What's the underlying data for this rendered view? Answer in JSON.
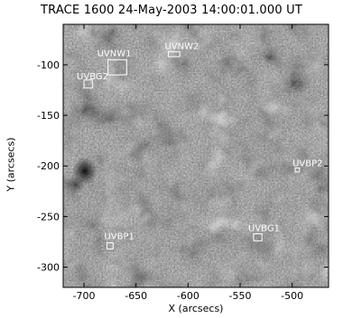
{
  "figure": {
    "title": "TRACE 1600 24-May-2003 14:00:01.000 UT",
    "xlabel": "X (arcsecs)",
    "ylabel": "Y (arcsecs)"
  },
  "image": {
    "description_type": "solar UV image (grayscale, granular texture)",
    "colors": {
      "background": "#4a4a4a",
      "bright": "#e8e8e8",
      "dark": "#1a1a1a",
      "box": "#ffffff"
    }
  },
  "axes": {
    "xlim": [
      -720,
      -465
    ],
    "ylim": [
      -320,
      -60
    ],
    "xticks": [
      -700,
      -650,
      -600,
      -550,
      -500
    ],
    "yticks": [
      -100,
      -150,
      -200,
      -250,
      -300
    ],
    "xtick_labels": [
      "-700",
      "-650",
      "-600",
      "-550",
      "-500"
    ],
    "ytick_labels": [
      "-100",
      "-150",
      "-200",
      "-250",
      "-300"
    ]
  },
  "regions": [
    {
      "label": "UVNW1",
      "x": [
        -677,
        -659
      ],
      "y": [
        -110,
        -95
      ]
    },
    {
      "label": "UVNW2",
      "x": [
        -619,
        -608
      ],
      "y": [
        -92,
        -87
      ]
    },
    {
      "label": "UVBG2",
      "x": [
        -700,
        -692
      ],
      "y": [
        -123,
        -115
      ]
    },
    {
      "label": "UVBP2",
      "x": [
        -497,
        -493
      ],
      "y": [
        -206,
        -202
      ]
    },
    {
      "label": "UVBG1",
      "x": [
        -537,
        -529
      ],
      "y": [
        -274,
        -267
      ]
    },
    {
      "label": "UVBP1",
      "x": [
        -678,
        -672
      ],
      "y": [
        -282,
        -276
      ]
    }
  ]
}
